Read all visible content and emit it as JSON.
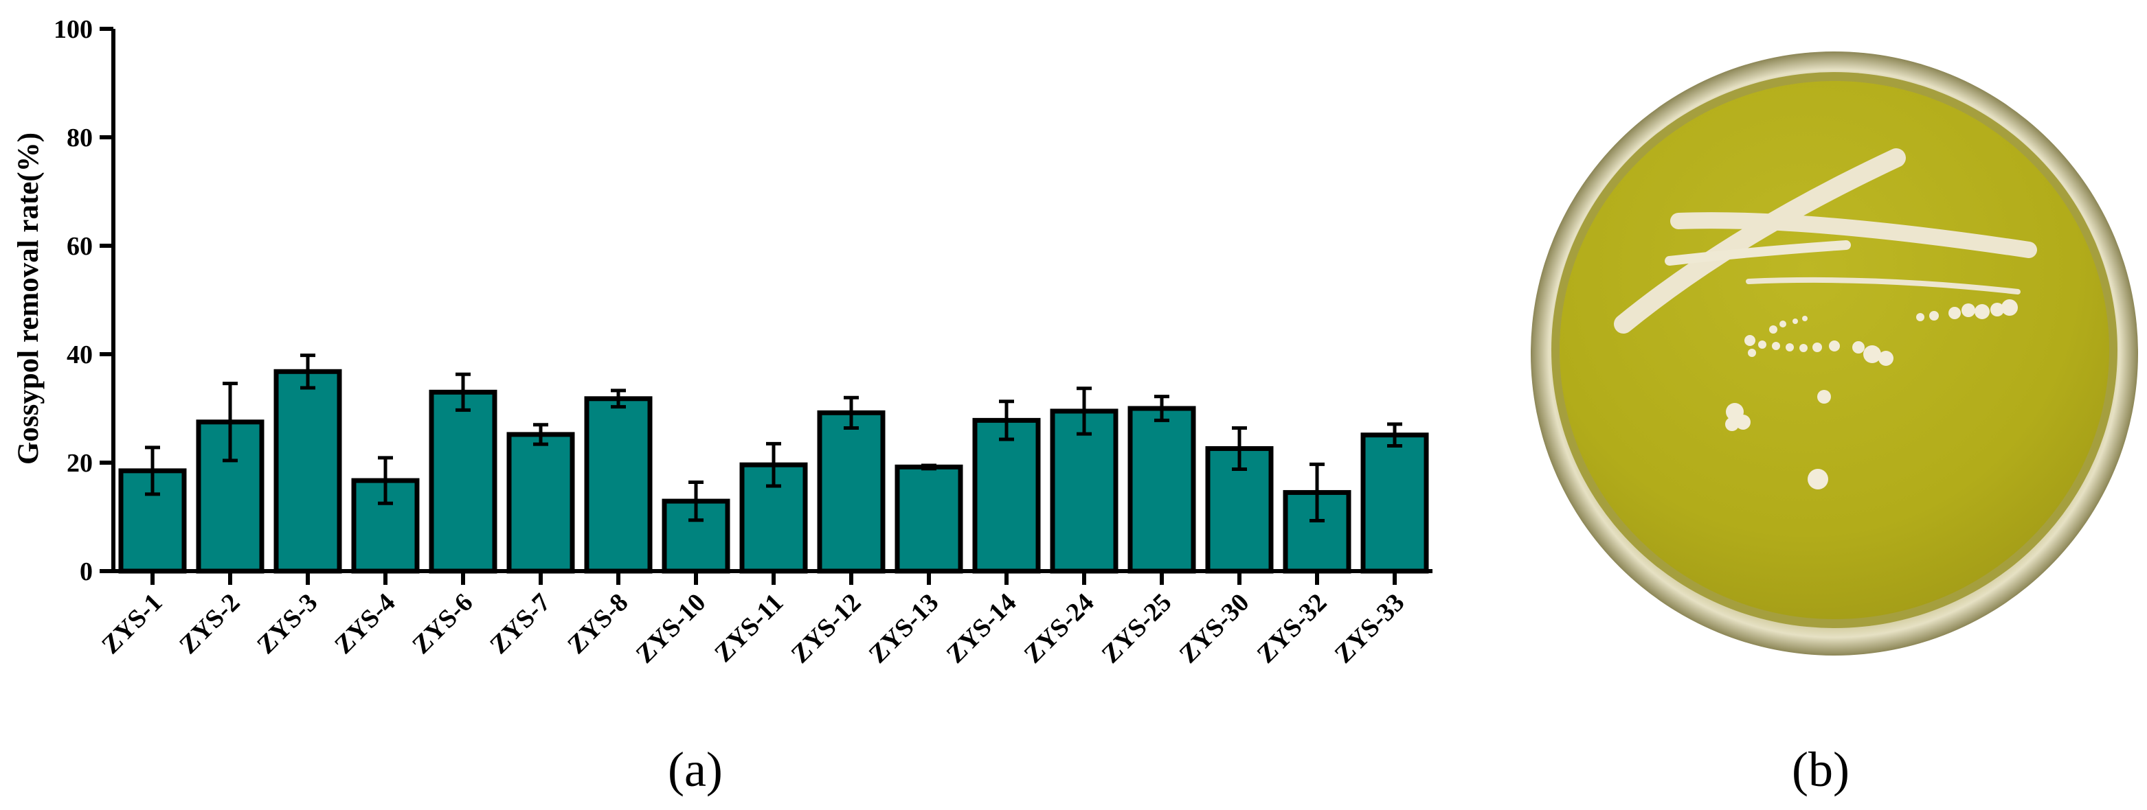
{
  "panel_labels": {
    "a": "(a)",
    "b": "(b)"
  },
  "colors": {
    "bar_fill": "#00837E",
    "plate_medium": "#B5AF1A",
    "colony": "#F2ECD9"
  },
  "photo": {
    "icon": "petri-dish-with-yeast-colonies"
  },
  "chart_data": {
    "type": "bar",
    "title": "",
    "xlabel": "",
    "ylabel": "Gossypol removal rate(%)",
    "ylim": [
      0,
      100
    ],
    "yticks": [
      0,
      20,
      40,
      60,
      80,
      100
    ],
    "ytick_labels": [
      "0",
      "20",
      "40",
      "60",
      "80",
      "100"
    ],
    "grid": false,
    "legend": "none",
    "categories": [
      "ZYS-1",
      "ZYS-2",
      "ZYS-3",
      "ZYS-4",
      "ZYS-6",
      "ZYS-7",
      "ZYS-8",
      "ZYS-10",
      "ZYS-11",
      "ZYS-12",
      "ZYS-13",
      "ZYS-14",
      "ZYS-24",
      "ZYS-25",
      "ZYS-30",
      "ZYS-32",
      "ZYS-33"
    ],
    "values": [
      18.5,
      27.5,
      36.8,
      16.7,
      33.0,
      25.2,
      31.8,
      12.9,
      19.6,
      29.2,
      19.2,
      27.8,
      29.5,
      30.0,
      22.6,
      14.5,
      25.1
    ],
    "errors": [
      4.3,
      7.1,
      3.0,
      4.2,
      3.3,
      1.8,
      1.5,
      3.5,
      3.9,
      2.8,
      0.3,
      3.5,
      4.2,
      2.2,
      3.8,
      5.2,
      2.0
    ]
  }
}
